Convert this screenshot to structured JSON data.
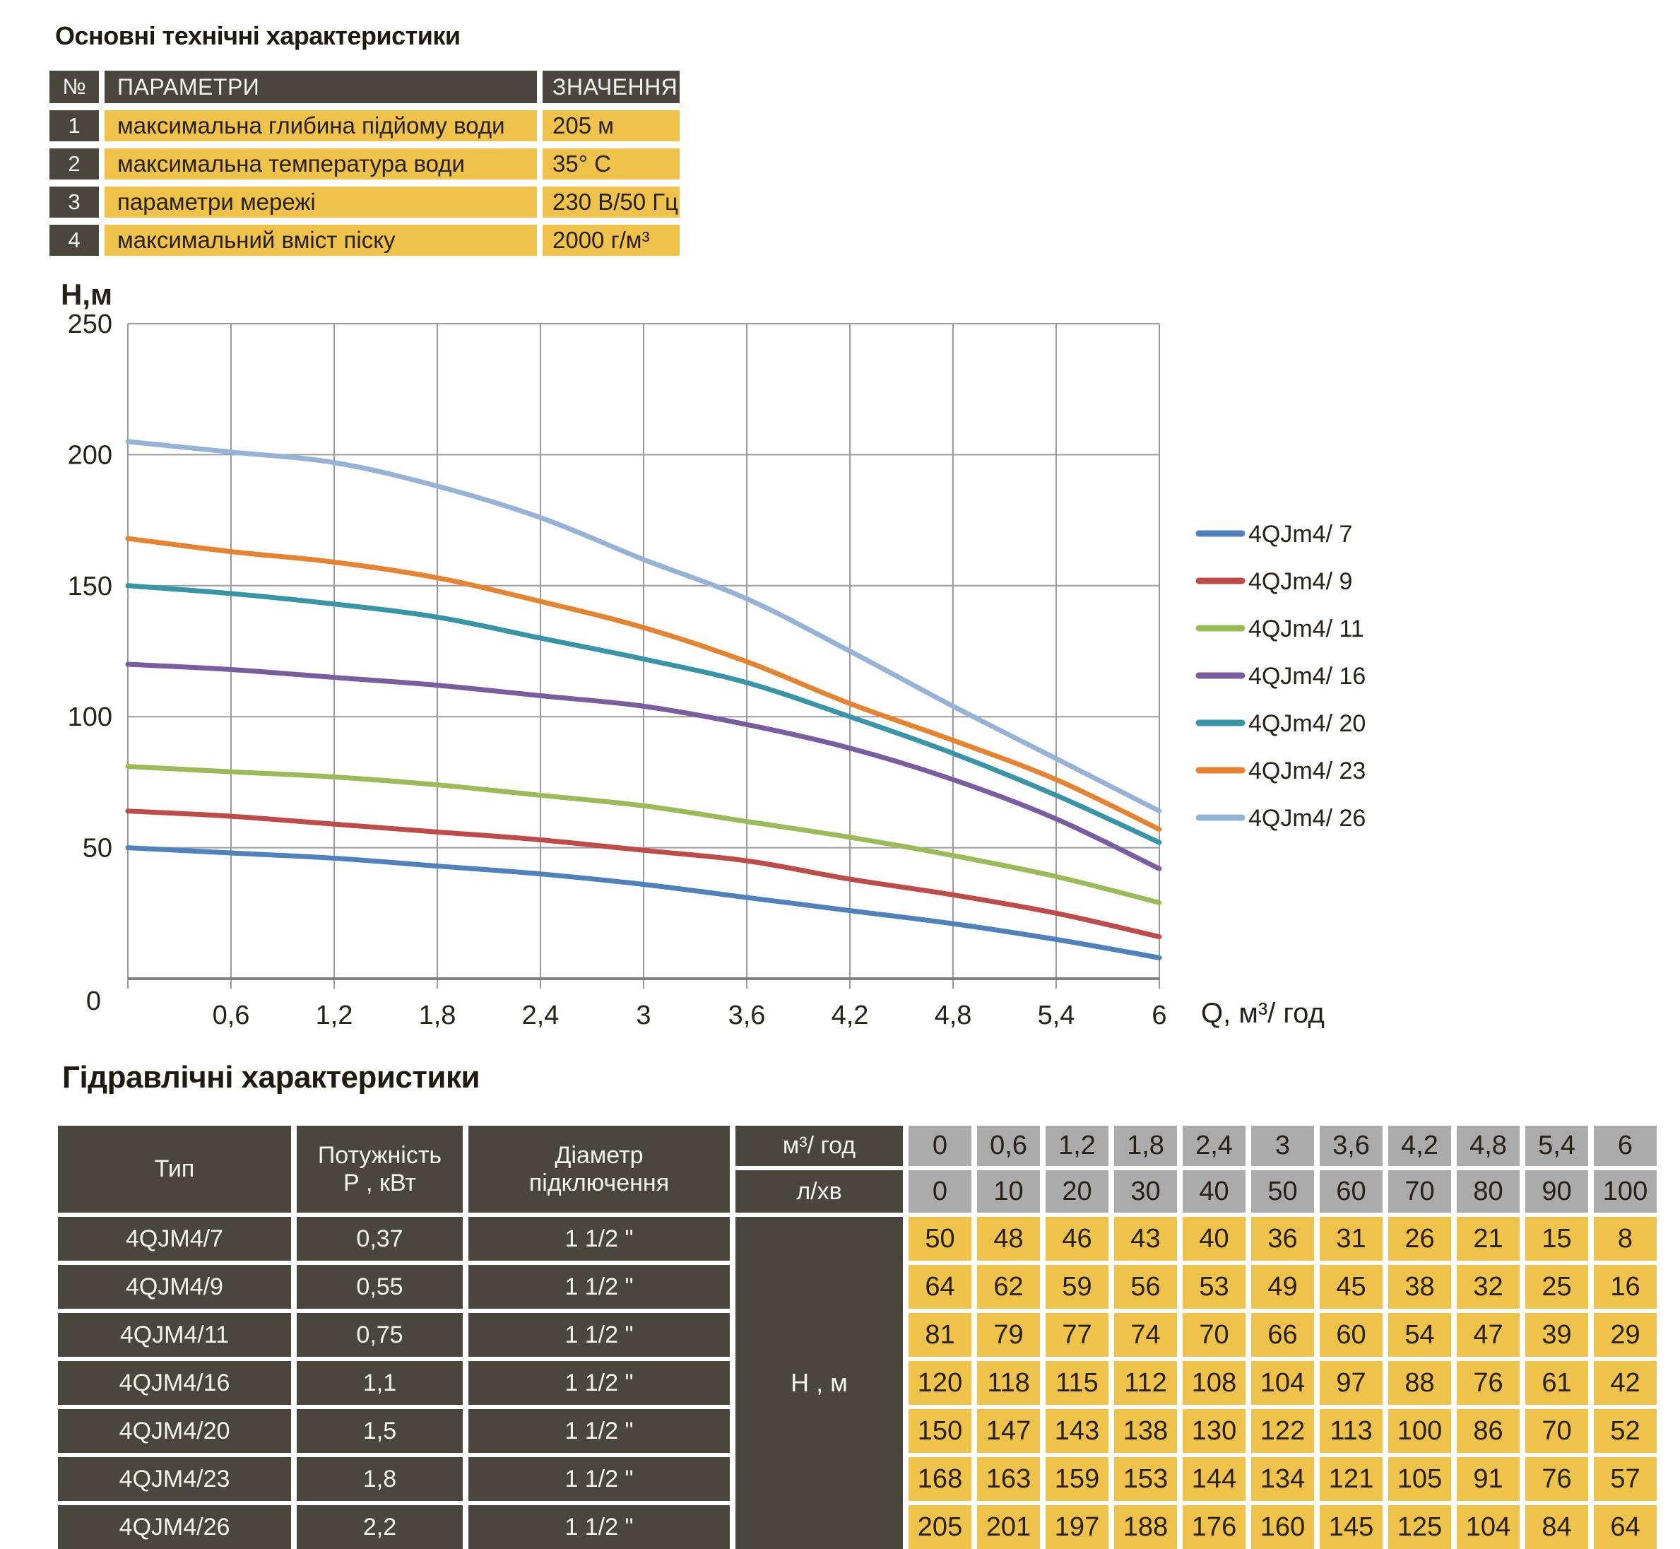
{
  "colors": {
    "yellow": "#efc24a",
    "dark_cell": "#4a453d",
    "gray_cell": "#ababab",
    "grid": "#9b9b9b",
    "axis": "#808080",
    "text": "#272117"
  },
  "top_section": {
    "title": "Основні технічні характеристики",
    "headers": {
      "num": "№",
      "param": "ПАРАМЕТРИ",
      "value": "ЗНАЧЕННЯ"
    },
    "rows": [
      {
        "num": "1",
        "param": "максимальна глибина підйому води",
        "value": "205 м"
      },
      {
        "num": "2",
        "param": "максимальна температура води",
        "value": "35° С"
      },
      {
        "num": "3",
        "param": "параметри мережі",
        "value": "230 В/50 Гц"
      },
      {
        "num": "4",
        "param": "максимальний вміст піску",
        "value": "2000 г/м³"
      }
    ]
  },
  "chart_data": {
    "type": "line",
    "title": "",
    "ylabel": "Н,м",
    "xlabel": "Q,  м³/ год",
    "x": [
      0,
      0.6,
      1.2,
      1.8,
      2.4,
      3,
      3.6,
      4.2,
      4.8,
      5.4,
      6
    ],
    "x_tick_labels": [
      "0,6",
      "1,2",
      "1,8",
      "2,4",
      "3",
      "3,6",
      "4,2",
      "4,8",
      "5,4",
      "6"
    ],
    "origin_label": "0",
    "ylim": [
      0,
      250
    ],
    "yticks": [
      0,
      50,
      100,
      150,
      200,
      250
    ],
    "grid": true,
    "legend_position": "right",
    "series": [
      {
        "name": "4QJm4/ 7",
        "color": "#4f81bd",
        "values": [
          50,
          48,
          46,
          43,
          40,
          36,
          31,
          26,
          21,
          15,
          8
        ]
      },
      {
        "name": "4QJm4/ 9",
        "color": "#be4b48",
        "values": [
          64,
          62,
          59,
          56,
          53,
          49,
          45,
          38,
          32,
          25,
          16
        ]
      },
      {
        "name": "4QJm4/ 11",
        "color": "#9bbb59",
        "values": [
          81,
          79,
          77,
          74,
          70,
          66,
          60,
          54,
          47,
          39,
          29
        ]
      },
      {
        "name": "4QJm4/ 16",
        "color": "#7a5da0",
        "values": [
          120,
          118,
          115,
          112,
          108,
          104,
          97,
          88,
          76,
          61,
          42
        ]
      },
      {
        "name": "4QJm4/ 20",
        "color": "#3895a8",
        "values": [
          150,
          147,
          143,
          138,
          130,
          122,
          113,
          100,
          86,
          70,
          52
        ]
      },
      {
        "name": "4QJm4/ 23",
        "color": "#e6832e",
        "values": [
          168,
          163,
          159,
          153,
          144,
          134,
          121,
          105,
          91,
          76,
          57
        ]
      },
      {
        "name": "4QJm4/ 26",
        "color": "#95b3d7",
        "values": [
          205,
          201,
          197,
          188,
          176,
          160,
          145,
          125,
          104,
          84,
          64
        ]
      }
    ]
  },
  "hydraulics": {
    "title": "Гідравлічні характеристики",
    "col_headers": {
      "type": "Тип",
      "power_l1": "Потужність",
      "power_l2": "Р , кВт",
      "diameter_l1": "Діаметр",
      "diameter_l2": "підключення",
      "flow_m3": "м³/ год",
      "flow_lmin": "л/хв",
      "head": "Н , м"
    },
    "flow_m3_values": [
      "0",
      "0,6",
      "1,2",
      "1,8",
      "2,4",
      "3",
      "3,6",
      "4,2",
      "4,8",
      "5,4",
      "6"
    ],
    "flow_lmin_values": [
      "0",
      "10",
      "20",
      "30",
      "40",
      "50",
      "60",
      "70",
      "80",
      "90",
      "100"
    ],
    "rows": [
      {
        "type": "4QJM4/7",
        "power": "0,37",
        "diameter": "1 1/2 \"",
        "heads": [
          "50",
          "48",
          "46",
          "43",
          "40",
          "36",
          "31",
          "26",
          "21",
          "15",
          "8"
        ]
      },
      {
        "type": "4QJM4/9",
        "power": "0,55",
        "diameter": "1 1/2 \"",
        "heads": [
          "64",
          "62",
          "59",
          "56",
          "53",
          "49",
          "45",
          "38",
          "32",
          "25",
          "16"
        ]
      },
      {
        "type": "4QJM4/11",
        "power": "0,75",
        "diameter": "1 1/2 \"",
        "heads": [
          "81",
          "79",
          "77",
          "74",
          "70",
          "66",
          "60",
          "54",
          "47",
          "39",
          "29"
        ]
      },
      {
        "type": "4QJM4/16",
        "power": "1,1",
        "diameter": "1 1/2 \"",
        "heads": [
          "120",
          "118",
          "115",
          "112",
          "108",
          "104",
          "97",
          "88",
          "76",
          "61",
          "42"
        ]
      },
      {
        "type": "4QJM4/20",
        "power": "1,5",
        "diameter": "1 1/2 \"",
        "heads": [
          "150",
          "147",
          "143",
          "138",
          "130",
          "122",
          "113",
          "100",
          "86",
          "70",
          "52"
        ]
      },
      {
        "type": "4QJM4/23",
        "power": "1,8",
        "diameter": "1 1/2 \"",
        "heads": [
          "168",
          "163",
          "159",
          "153",
          "144",
          "134",
          "121",
          "105",
          "91",
          "76",
          "57"
        ]
      },
      {
        "type": "4QJM4/26",
        "power": "2,2",
        "diameter": "1 1/2 \"",
        "heads": [
          "205",
          "201",
          "197",
          "188",
          "176",
          "160",
          "145",
          "125",
          "104",
          "84",
          "64"
        ]
      }
    ]
  }
}
